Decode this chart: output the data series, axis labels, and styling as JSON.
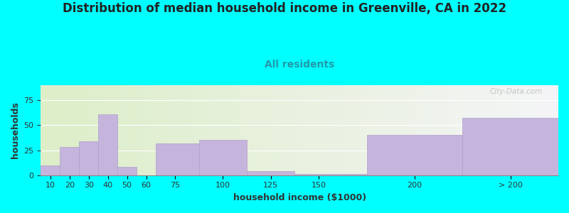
{
  "title": "Distribution of median household income in Greenville, CA in 2022",
  "subtitle": "All residents",
  "xlabel": "household income ($1000)",
  "ylabel": "households",
  "background_outer": "#00FFFF",
  "bar_color": "#C5B4DC",
  "bar_edge_color": "#B0A0CC",
  "categories": [
    "10",
    "20",
    "30",
    "40",
    "50",
    "60",
    "75",
    "100",
    "125",
    "150",
    "200",
    "> 200"
  ],
  "values": [
    10,
    28,
    34,
    61,
    8,
    0,
    32,
    35,
    4,
    1,
    40,
    57
  ],
  "xtick_positions": [
    10,
    20,
    30,
    40,
    50,
    60,
    75,
    100,
    125,
    150,
    200,
    250
  ],
  "ylim": [
    0,
    90
  ],
  "yticks": [
    0,
    25,
    50,
    75
  ],
  "title_fontsize": 12,
  "subtitle_fontsize": 10,
  "label_fontsize": 9,
  "tick_fontsize": 8,
  "watermark_text": "City-Data.com",
  "plot_bg_green": "#DDEEC8",
  "plot_bg_white": "#F0F0F0",
  "subtitle_color": "#2299AA",
  "title_color": "#222222",
  "axis_color": "#333333"
}
